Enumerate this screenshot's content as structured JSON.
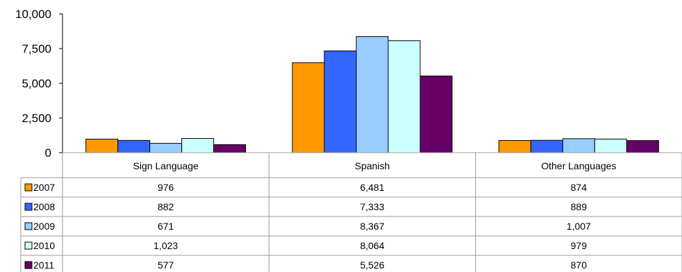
{
  "chart_data": {
    "type": "bar",
    "categories": [
      "Sign Language",
      "Spanish",
      "Other Languages"
    ],
    "series": [
      {
        "name": "2007",
        "color": "#FF9900",
        "values": [
          976,
          6481,
          874
        ],
        "labels": [
          "976",
          "6,481",
          "874"
        ]
      },
      {
        "name": "2008",
        "color": "#3366FF",
        "values": [
          882,
          7333,
          889
        ],
        "labels": [
          "882",
          "7,333",
          "889"
        ]
      },
      {
        "name": "2009",
        "color": "#99CCFF",
        "values": [
          671,
          8367,
          1007
        ],
        "labels": [
          "671",
          "8,367",
          "1,007"
        ]
      },
      {
        "name": "2010",
        "color": "#CCFFFF",
        "values": [
          1023,
          8064,
          979
        ],
        "labels": [
          "1,023",
          "8,064",
          "979"
        ]
      },
      {
        "name": "2011",
        "color": "#660066",
        "values": [
          577,
          5526,
          870
        ],
        "labels": [
          "577",
          "5,526",
          "870"
        ]
      }
    ],
    "ylim": [
      0,
      10000
    ],
    "yticks": [
      0,
      2500,
      5000,
      7500,
      10000
    ],
    "ytick_labels": [
      "0",
      "2,500",
      "5,000",
      "7,500",
      "10,000"
    ],
    "grid": false,
    "data_table": true
  }
}
